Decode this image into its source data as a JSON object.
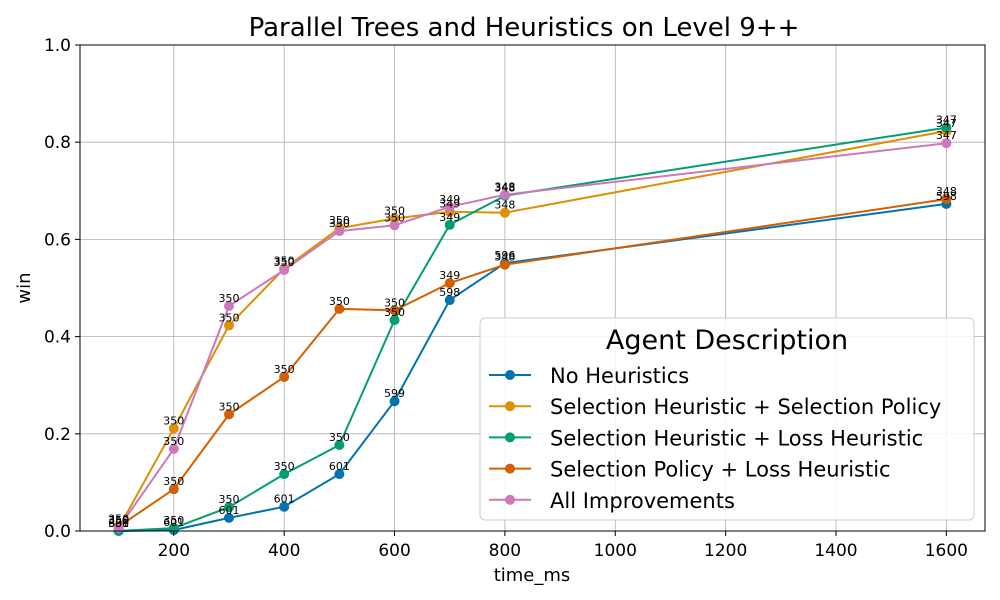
{
  "chart_data": {
    "type": "line",
    "title": "Parallel Trees and Heuristics on Level 9++",
    "xlabel": "time_ms",
    "ylabel": "win",
    "xlim": [
      30,
      1670
    ],
    "ylim": [
      0.0,
      1.0
    ],
    "xticks": [
      200,
      400,
      600,
      800,
      1000,
      1200,
      1400,
      1600
    ],
    "yticks": [
      0.0,
      0.2,
      0.4,
      0.6,
      0.8,
      1.0
    ],
    "xtick_labels": [
      "200",
      "400",
      "600",
      "800",
      "1000",
      "1200",
      "1400",
      "1600"
    ],
    "ytick_labels": [
      "0.0",
      "0.2",
      "0.4",
      "0.6",
      "0.8",
      "1.0"
    ],
    "grid": true,
    "legend": {
      "title": "Agent Description",
      "placement": "lower-right"
    },
    "series": [
      {
        "name": "No Heuristics",
        "color": "#0173b2",
        "x": [
          100,
          200,
          300,
          400,
          500,
          600,
          700,
          800,
          1600
        ],
        "y": [
          0.0,
          0.002,
          0.027,
          0.05,
          0.117,
          0.267,
          0.475,
          0.551,
          0.673
        ],
        "labels": [
          "601",
          "601",
          "601",
          "601",
          "601",
          "599",
          "598",
          "596",
          "598"
        ]
      },
      {
        "name": "Selection Heuristic + Selection Policy",
        "color": "#de8f05",
        "x": [
          100,
          200,
          300,
          400,
          500,
          600,
          700,
          800,
          1600
        ],
        "y": [
          0.006,
          0.211,
          0.423,
          0.54,
          0.623,
          0.643,
          0.657,
          0.655,
          0.823
        ],
        "labels": [
          "350",
          "350",
          "350",
          "350",
          "350",
          "350",
          "349",
          "348",
          "347"
        ]
      },
      {
        "name": "Selection Heuristic + Loss Heuristic",
        "color": "#029e73",
        "x": [
          100,
          200,
          300,
          400,
          500,
          600,
          700,
          800,
          1600
        ],
        "y": [
          0.0,
          0.006,
          0.049,
          0.117,
          0.177,
          0.434,
          0.63,
          0.69,
          0.83
        ],
        "labels": [
          "350",
          "350",
          "350",
          "350",
          "350",
          "350",
          "349",
          "348",
          "347"
        ]
      },
      {
        "name": "Selection Policy + Loss Heuristic",
        "color": "#d55e00",
        "x": [
          100,
          200,
          300,
          400,
          500,
          600,
          700,
          800,
          1600
        ],
        "y": [
          0.009,
          0.086,
          0.24,
          0.317,
          0.457,
          0.454,
          0.51,
          0.548,
          0.683
        ],
        "labels": [
          "350",
          "350",
          "350",
          "350",
          "350",
          "350",
          "349",
          "348",
          "348"
        ]
      },
      {
        "name": "All Improvements",
        "color": "#cc78bc",
        "x": [
          100,
          200,
          300,
          400,
          500,
          600,
          700,
          800,
          1600
        ],
        "y": [
          0.006,
          0.169,
          0.463,
          0.537,
          0.617,
          0.629,
          0.667,
          0.692,
          0.798
        ],
        "labels": [
          "350",
          "350",
          "350",
          "350",
          "350",
          "350",
          "349",
          "348",
          "347"
        ]
      }
    ]
  }
}
